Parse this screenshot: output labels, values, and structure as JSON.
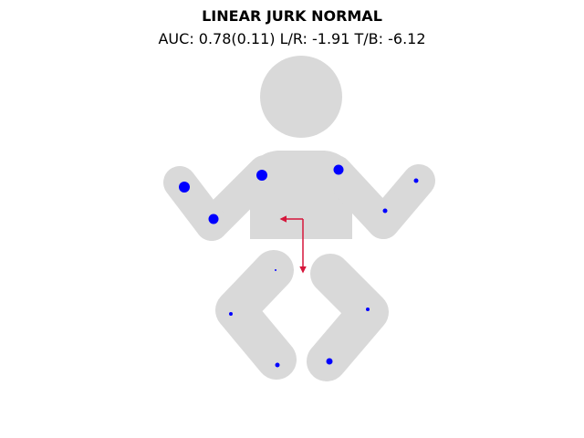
{
  "title": "LINEAR JURK NORMAL",
  "subtitle": "AUC: 0.78(0.11) L/R: -1.91 T/B: -6.12",
  "colors": {
    "body": "#d9d9d9",
    "marker": "#0000ff",
    "arrow": "#d6163b"
  },
  "markers": [
    {
      "name": "marker-left-hand",
      "size": 6
    },
    {
      "name": "marker-left-elbow",
      "size": 5.5
    },
    {
      "name": "marker-left-shoulder",
      "size": 6
    },
    {
      "name": "marker-right-shoulder",
      "size": 5.5
    },
    {
      "name": "marker-right-elbow",
      "size": 2.5
    },
    {
      "name": "marker-right-hand",
      "size": 2.5
    },
    {
      "name": "marker-hip-center",
      "size": 1
    },
    {
      "name": "marker-left-knee",
      "size": 2
    },
    {
      "name": "marker-left-foot",
      "size": 2.5
    },
    {
      "name": "marker-right-knee",
      "size": 2
    },
    {
      "name": "marker-right-foot",
      "size": 3.5
    }
  ],
  "vector": {
    "lr": -1.91,
    "tb": -6.12
  }
}
